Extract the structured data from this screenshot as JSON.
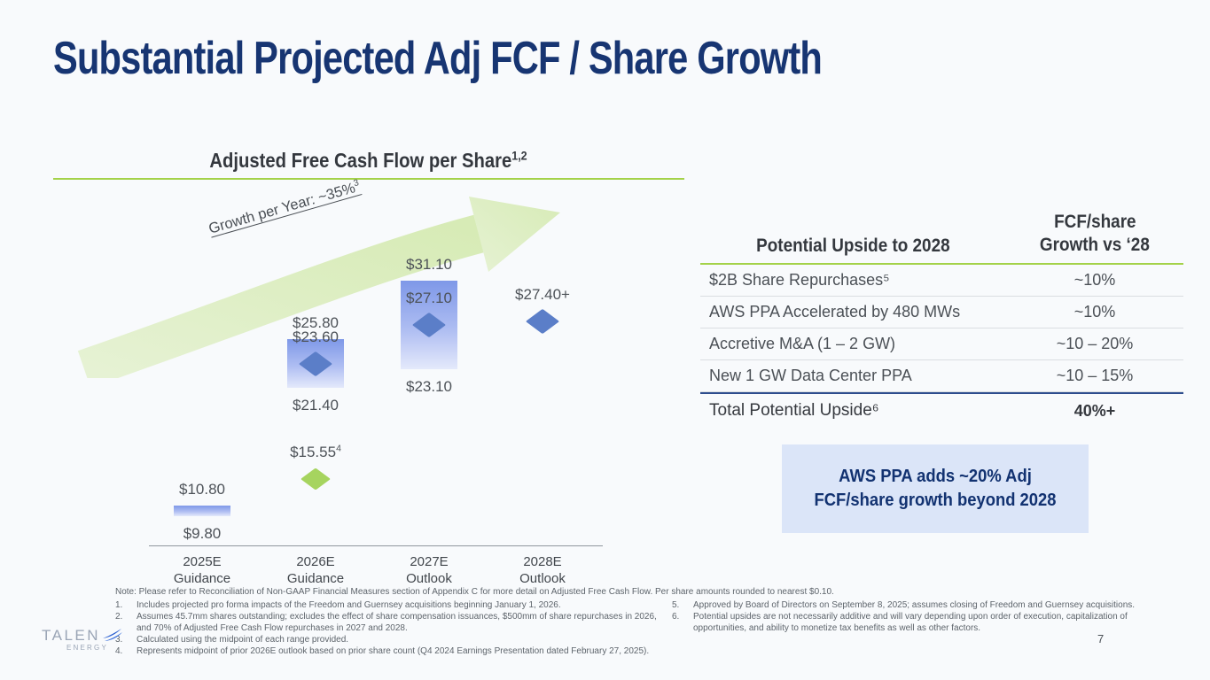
{
  "slide": {
    "title": "Substantial Projected Adj FCF / Share Growth",
    "page_number": "7",
    "colors": {
      "navy": "#173572",
      "green_accent": "#a4d249",
      "bar_blue": "#7e98e8",
      "diamond_blue": "#5b7ec8",
      "diamond_green": "#a6d45f",
      "callout_bg": "#dbe5f8",
      "background": "#f8fafc"
    }
  },
  "chart_data": {
    "type": "bar",
    "title": "Adjusted Free Cash Flow per Share",
    "title_superscript": "1,2",
    "annotation": {
      "text": "Growth per Year: ~35%",
      "superscript": "3"
    },
    "unit": "USD per share",
    "ylim": [
      7,
      33
    ],
    "grid": false,
    "categories": [
      {
        "line1": "2025E",
        "line2": "Guidance"
      },
      {
        "line1": "2026E",
        "line2": "Guidance"
      },
      {
        "line1": "2027E",
        "line2": "Outlook"
      },
      {
        "line1": "2028E",
        "line2": "Outlook"
      }
    ],
    "columns": [
      {
        "bar": {
          "low": 9.8,
          "high": 10.8,
          "label_low": "$9.80",
          "label_high": "$10.80"
        },
        "markers": []
      },
      {
        "bar": {
          "low": 21.4,
          "high": 25.8,
          "label_low": "$21.40",
          "label_high": "$25.80"
        },
        "markers": [
          {
            "type": "diamond-blue",
            "value": 23.6,
            "label": "$23.60"
          },
          {
            "type": "diamond-green",
            "value": 15.55,
            "label": "$15.55",
            "label_sup": "4",
            "dy": 30
          }
        ]
      },
      {
        "bar": {
          "low": 23.1,
          "high": 31.1,
          "label_low": "$23.10",
          "label_high": "$31.10"
        },
        "markers": [
          {
            "type": "diamond-blue",
            "value": 27.1,
            "label": "$27.10"
          }
        ]
      },
      {
        "bar": null,
        "markers": [
          {
            "type": "diamond-blue",
            "value": 27.4,
            "label": "$27.40+"
          }
        ]
      }
    ]
  },
  "table": {
    "header": {
      "col1": "Potential Upside to 2028",
      "col2_line1": "FCF/share",
      "col2_line2": "Growth vs ‘28"
    },
    "rows": [
      {
        "label": "$2B Share Repurchases⁵",
        "value": "~10%"
      },
      {
        "label": "AWS PPA Accelerated by 480 MWs",
        "value": "~10%"
      },
      {
        "label": "Accretive M&A (1 – 2 GW)",
        "value": "~10 – 20%"
      },
      {
        "label": "New 1 GW Data Center PPA",
        "value": "~10 – 15%"
      }
    ],
    "total": {
      "label": "Total Potential Upside⁶",
      "value": "40%+"
    }
  },
  "callout": {
    "text": "AWS PPA adds ~20% Adj FCF/share growth beyond 2028"
  },
  "footnotes": {
    "note": "Note: Please refer to Reconciliation of Non-GAAP Financial Measures section of Appendix C for more detail on Adjusted Free Cash Flow. Per share amounts rounded to nearest $0.10.",
    "left": [
      {
        "n": "1.",
        "text": "Includes projected pro forma impacts of the Freedom and Guernsey acquisitions beginning January 1, 2026."
      },
      {
        "n": "2.",
        "text": "Assumes 45.7mm shares outstanding; excludes the effect of share compensation issuances, $500mm of share repurchases in 2026, and 70% of Adjusted Free Cash Flow repurchases in 2027 and 2028."
      },
      {
        "n": "3.",
        "text": "Calculated using the midpoint of each range provided."
      },
      {
        "n": "4.",
        "text": "Represents midpoint of prior 2026E outlook based on prior share count (Q4 2024 Earnings Presentation dated February 27, 2025)."
      }
    ],
    "right": [
      {
        "n": "5.",
        "text": "Approved by Board of Directors on September 8, 2025; assumes closing of Freedom and Guernsey acquisitions."
      },
      {
        "n": "6.",
        "text": "Potential upsides are not necessarily additive and will vary depending upon order of execution, capitalization of opportunities, and ability to monetize tax benefits as well as other factors."
      }
    ]
  },
  "logo": {
    "line1": "TALEN",
    "line2": "ENERGY"
  }
}
